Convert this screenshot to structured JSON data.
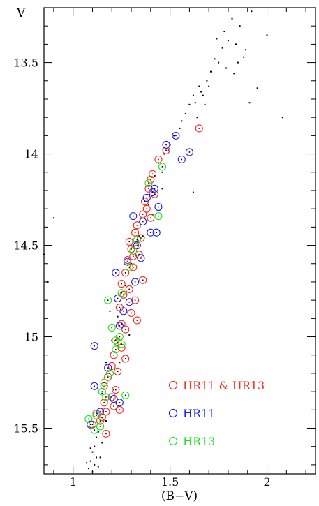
{
  "chart_data": {
    "type": "scatter",
    "title": "",
    "xlabel": "(B−V)",
    "ylabel": "V",
    "xlim": [
      0.85,
      2.25
    ],
    "ylim": [
      15.75,
      13.2
    ],
    "y_inverted": true,
    "grid": false,
    "legend_placement": "bottom-right",
    "x_ticks": [
      1,
      1.5,
      2
    ],
    "x_tick_labels": [
      "1",
      "1.5",
      "2"
    ],
    "y_ticks": [
      13.5,
      14,
      14.5,
      15,
      15.5
    ],
    "y_tick_labels": [
      "13.5",
      "14",
      "14.5",
      "15",
      "15.5"
    ],
    "series": [
      {
        "name": "HR11 & HR13",
        "marker": "open-circle",
        "color": "#ff2a1a",
        "points": [
          [
            1.65,
            13.86
          ],
          [
            1.48,
            13.98
          ],
          [
            1.44,
            14.03
          ],
          [
            1.41,
            14.11
          ],
          [
            1.4,
            14.14
          ],
          [
            1.39,
            14.19
          ],
          [
            1.42,
            14.22
          ],
          [
            1.37,
            14.26
          ],
          [
            1.38,
            14.3
          ],
          [
            1.36,
            14.33
          ],
          [
            1.4,
            14.35
          ],
          [
            1.33,
            14.39
          ],
          [
            1.32,
            14.43
          ],
          [
            1.35,
            14.46
          ],
          [
            1.29,
            14.48
          ],
          [
            1.32,
            14.5
          ],
          [
            1.3,
            14.52
          ],
          [
            1.34,
            14.55
          ],
          [
            1.31,
            14.56
          ],
          [
            1.28,
            14.58
          ],
          [
            1.31,
            14.62
          ],
          [
            1.27,
            14.65
          ],
          [
            1.36,
            14.69
          ],
          [
            1.25,
            14.71
          ],
          [
            1.29,
            14.74
          ],
          [
            1.26,
            14.77
          ],
          [
            1.32,
            14.8
          ],
          [
            1.24,
            14.84
          ],
          [
            1.3,
            14.87
          ],
          [
            1.33,
            14.91
          ],
          [
            1.25,
            14.93
          ],
          [
            1.27,
            14.96
          ],
          [
            1.23,
            15.03
          ],
          [
            1.25,
            15.06
          ],
          [
            1.21,
            15.1
          ],
          [
            1.27,
            15.12
          ],
          [
            1.2,
            15.16
          ],
          [
            1.23,
            15.19
          ],
          [
            1.18,
            15.22
          ],
          [
            1.16,
            15.27
          ],
          [
            1.2,
            15.33
          ],
          [
            1.21,
            15.38
          ],
          [
            1.17,
            15.41
          ],
          [
            1.12,
            15.42
          ],
          [
            1.14,
            15.46
          ],
          [
            1.1,
            15.48
          ],
          [
            1.17,
            15.53
          ],
          [
            1.15,
            15.44
          ],
          [
            1.16,
            15.36
          ],
          [
            1.24,
            15.4
          ],
          [
            1.22,
            15.29
          ]
        ]
      },
      {
        "name": "HR11",
        "marker": "open-circle",
        "color": "#1a1aff",
        "points": [
          [
            1.53,
            13.9
          ],
          [
            1.48,
            13.95
          ],
          [
            1.6,
            13.99
          ],
          [
            1.56,
            14.03
          ],
          [
            1.42,
            14.19
          ],
          [
            1.38,
            14.24
          ],
          [
            1.44,
            14.29
          ],
          [
            1.31,
            14.34
          ],
          [
            1.36,
            14.37
          ],
          [
            1.4,
            14.43
          ],
          [
            1.43,
            14.43
          ],
          [
            1.33,
            14.5
          ],
          [
            1.28,
            14.59
          ],
          [
            1.22,
            14.65
          ],
          [
            1.32,
            14.7
          ],
          [
            1.23,
            14.79
          ],
          [
            1.29,
            14.81
          ],
          [
            1.26,
            14.86
          ],
          [
            1.24,
            14.94
          ],
          [
            1.11,
            15.05
          ],
          [
            1.18,
            15.17
          ],
          [
            1.11,
            15.27
          ],
          [
            1.21,
            15.34
          ],
          [
            1.14,
            15.41
          ],
          [
            1.09,
            15.48
          ],
          [
            1.41,
            14.21
          ],
          [
            1.35,
            14.57
          ],
          [
            1.24,
            15.36
          ]
        ]
      },
      {
        "name": "HR13",
        "marker": "open-circle",
        "color": "#1ce61c",
        "points": [
          [
            1.46,
            14.07
          ],
          [
            1.39,
            14.16
          ],
          [
            1.44,
            14.34
          ],
          [
            1.33,
            14.47
          ],
          [
            1.31,
            14.53
          ],
          [
            1.29,
            14.62
          ],
          [
            1.25,
            14.76
          ],
          [
            1.18,
            14.8
          ],
          [
            1.2,
            14.95
          ],
          [
            1.24,
            15.0
          ],
          [
            1.22,
            15.02
          ],
          [
            1.25,
            15.04
          ],
          [
            1.22,
            15.07
          ],
          [
            1.19,
            15.2
          ],
          [
            1.16,
            15.25
          ],
          [
            1.15,
            15.3
          ],
          [
            1.17,
            15.33
          ],
          [
            1.27,
            15.32
          ],
          [
            1.12,
            15.43
          ],
          [
            1.08,
            15.45
          ],
          [
            1.14,
            15.49
          ],
          [
            1.11,
            15.51
          ]
        ]
      },
      {
        "name": "",
        "marker": "dot",
        "color": "#000000",
        "points": [
          [
            1.92,
            13.22
          ],
          [
            1.86,
            13.3
          ],
          [
            1.82,
            13.26
          ],
          [
            1.78,
            13.33
          ],
          [
            1.74,
            13.37
          ],
          [
            1.8,
            13.38
          ],
          [
            1.84,
            13.4
          ],
          [
            1.77,
            13.42
          ],
          [
            1.89,
            13.43
          ],
          [
            2.0,
            13.35
          ],
          [
            1.88,
            13.47
          ],
          [
            1.73,
            13.48
          ],
          [
            1.75,
            13.5
          ],
          [
            1.85,
            13.5
          ],
          [
            1.79,
            13.53
          ],
          [
            1.83,
            13.56
          ],
          [
            1.71,
            13.55
          ],
          [
            1.69,
            13.6
          ],
          [
            1.65,
            13.63
          ],
          [
            1.7,
            13.63
          ],
          [
            1.66,
            13.66
          ],
          [
            1.67,
            13.68
          ],
          [
            1.62,
            13.68
          ],
          [
            1.63,
            13.72
          ],
          [
            1.6,
            13.73
          ],
          [
            1.68,
            13.73
          ],
          [
            1.58,
            13.78
          ],
          [
            1.64,
            13.8
          ],
          [
            1.56,
            13.82
          ],
          [
            1.55,
            13.86
          ],
          [
            1.52,
            13.9
          ],
          [
            1.5,
            13.95
          ],
          [
            1.47,
            14.0
          ],
          [
            1.44,
            14.05
          ],
          [
            1.42,
            14.12
          ],
          [
            1.95,
            13.64
          ],
          [
            2.08,
            13.8
          ],
          [
            1.91,
            13.72
          ],
          [
            1.46,
            14.19
          ],
          [
            1.39,
            14.28
          ],
          [
            1.34,
            14.45
          ],
          [
            1.3,
            14.6
          ],
          [
            1.27,
            14.72
          ],
          [
            1.23,
            14.89
          ],
          [
            1.2,
            15.02
          ],
          [
            1.17,
            15.14
          ],
          [
            1.15,
            15.31
          ],
          [
            1.13,
            15.44
          ],
          [
            1.12,
            15.55
          ],
          [
            1.11,
            15.6
          ],
          [
            1.1,
            15.63
          ],
          [
            1.12,
            15.66
          ],
          [
            1.09,
            15.68
          ],
          [
            1.11,
            15.7
          ],
          [
            1.08,
            15.72
          ],
          [
            1.1,
            15.74
          ],
          [
            1.14,
            15.66
          ],
          [
            1.13,
            15.71
          ],
          [
            1.07,
            15.69
          ],
          [
            1.09,
            15.61
          ],
          [
            1.15,
            15.58
          ],
          [
            1.13,
            15.52
          ],
          [
            0.9,
            14.35
          ],
          [
            0.85,
            14.55
          ],
          [
            0.87,
            14.7
          ],
          [
            1.62,
            14.21
          ],
          [
            1.21,
            15.29
          ],
          [
            1.24,
            15.14
          ],
          [
            1.29,
            14.99
          ],
          [
            1.19,
            14.86
          ],
          [
            1.36,
            14.45
          ],
          [
            1.41,
            14.33
          ],
          [
            1.49,
            13.98
          ],
          [
            1.46,
            14.1
          ],
          [
            1.17,
            15.46
          ]
        ]
      }
    ]
  }
}
